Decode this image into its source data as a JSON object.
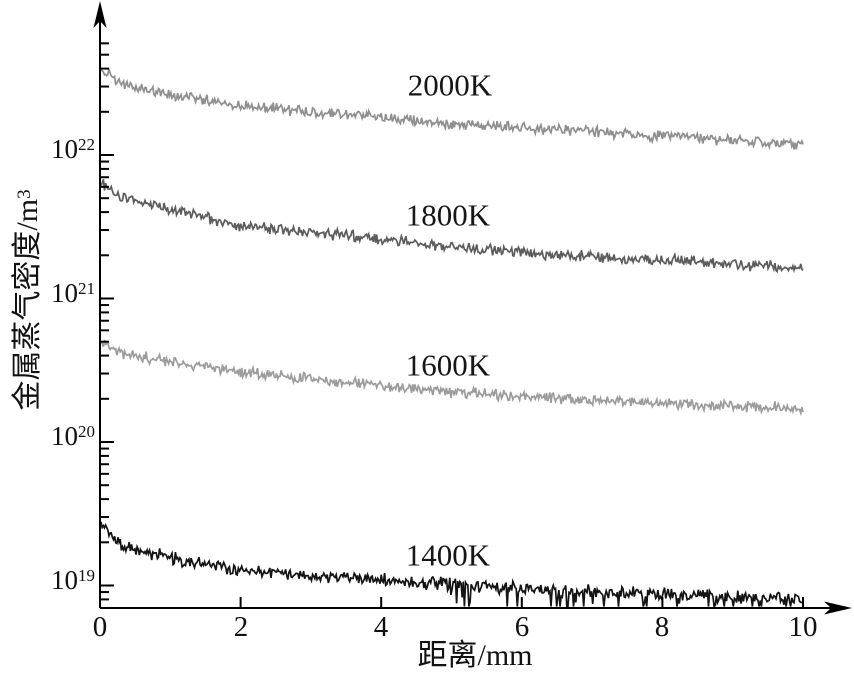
{
  "figure": {
    "background": "#ffffff",
    "axis_color": "#000000",
    "tick_label_color": "#111111"
  },
  "chart_data": {
    "type": "line",
    "title": "",
    "xlabel": "距离/mm",
    "ylabel": "金属蒸气密度/m³",
    "ylabel_base": "金属蒸气密度/m",
    "ylabel_exponent": "3",
    "grid": false,
    "legend_position": "inline-curve-labels",
    "xlim": [
      0,
      10
    ],
    "ylim_log10": [
      18.84,
      23.08
    ],
    "x_ticks": [
      0,
      2,
      4,
      6,
      8,
      10
    ],
    "y_tick_base": "10",
    "y_tick_exponents": [
      "22",
      "21",
      "20",
      "19"
    ],
    "y_scale": "log",
    "x_anchor_mm": [
      0,
      0.3,
      1,
      2,
      3,
      4,
      5,
      6,
      7,
      8,
      9,
      10
    ],
    "series": [
      {
        "name": "2000K",
        "color": "#8f8f8f",
        "noise_log": 0.03,
        "floor_spikes": false,
        "label_x_mm": 4.98,
        "label_log10": 22.49,
        "density_per_m3": [
          4e+22,
          3.16e+22,
          2.63e+22,
          2.24e+22,
          2e+22,
          1.82e+22,
          1.66e+22,
          1.55e+22,
          1.45e+22,
          1.35e+22,
          1.26e+22,
          1.2e+22
        ]
      },
      {
        "name": "1800K",
        "color": "#5c5c5c",
        "noise_log": 0.03,
        "floor_spikes": false,
        "label_x_mm": 4.95,
        "label_log10": 21.58,
        "density_per_m3": [
          6.6e+21,
          5e+21,
          4.2e+21,
          3.24e+21,
          2.88e+21,
          2.57e+21,
          2.29e+21,
          2.09e+21,
          1.95e+21,
          1.86e+21,
          1.74e+21,
          1.62e+21
        ]
      },
      {
        "name": "1600K",
        "color": "#9c9c9c",
        "noise_log": 0.03,
        "floor_spikes": false,
        "label_x_mm": 4.95,
        "label_log10": 20.54,
        "density_per_m3": [
          5e+20,
          4.17e+20,
          3.63e+20,
          3.09e+20,
          2.75e+20,
          2.45e+20,
          2.24e+20,
          2.09e+20,
          1.95e+20,
          1.86e+20,
          1.78e+20,
          1.7e+20
        ]
      },
      {
        "name": "1400K",
        "color": "#141414",
        "noise_log": 0.035,
        "floor_spikes": true,
        "label_x_mm": 4.95,
        "label_log10": 19.21,
        "density_per_m3": [
          2.63e+19,
          1.91e+19,
          1.55e+19,
          1.29e+19,
          1.17e+19,
          1.1e+19,
          1.02e+19,
          9.55e+18,
          9.12e+18,
          8.71e+18,
          8.32e+18,
          8.13e+18
        ]
      }
    ]
  }
}
